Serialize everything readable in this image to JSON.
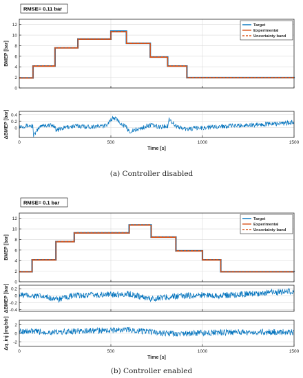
{
  "colors": {
    "target": "#0072BD",
    "experimental": "#D95319",
    "uncertainty": "#D95319",
    "grid": "#d9d9d9",
    "axis": "#262626"
  },
  "figure": {
    "caption_a": "(a) Controller disabled",
    "caption_b": "(b) Controller enabled"
  },
  "chart_data": [
    {
      "id": "a_top",
      "type": "line",
      "annotation": "RMSE= 0.11 bar",
      "ylabel": "BMEP [bar]",
      "xlabel": "",
      "xlim": [
        0,
        1500
      ],
      "ylim": [
        0,
        13
      ],
      "xticks": [
        0,
        500,
        1000,
        1500
      ],
      "yticks": [
        0,
        2,
        4,
        6,
        8,
        10,
        12
      ],
      "show_xticklabels": false,
      "grid": true,
      "legend": "top-right",
      "series": [
        {
          "name": "Target",
          "style": "solid",
          "color": "target",
          "steps": [
            [
              0,
              1.9
            ],
            [
              75,
              4.15
            ],
            [
              195,
              7.6
            ],
            [
              320,
              9.25
            ],
            [
              500,
              10.75
            ],
            [
              585,
              8.45
            ],
            [
              715,
              5.85
            ],
            [
              810,
              4.15
            ],
            [
              915,
              1.95
            ],
            [
              1500,
              1.85
            ]
          ]
        },
        {
          "name": "Experimental",
          "style": "solid",
          "color": "experimental",
          "steps": [
            [
              0,
              1.85
            ],
            [
              75,
              4.1
            ],
            [
              195,
              7.55
            ],
            [
              320,
              9.2
            ],
            [
              500,
              10.6
            ],
            [
              585,
              8.4
            ],
            [
              715,
              5.8
            ],
            [
              810,
              4.1
            ],
            [
              915,
              1.9
            ],
            [
              1500,
              1.8
            ]
          ]
        },
        {
          "name": "Uncertainty band",
          "style": "dashed",
          "color": "uncertainty",
          "steps": [
            [
              0,
              1.95
            ],
            [
              75,
              4.2
            ],
            [
              195,
              7.65
            ],
            [
              320,
              9.3
            ],
            [
              500,
              10.7
            ],
            [
              585,
              8.5
            ],
            [
              715,
              5.9
            ],
            [
              810,
              4.2
            ],
            [
              915,
              2.0
            ],
            [
              1500,
              1.9
            ]
          ]
        }
      ]
    },
    {
      "id": "a_err",
      "type": "line",
      "ylabel": "ΔBMEP [bar]",
      "xlabel": "Time [s]",
      "xlim": [
        0,
        1500
      ],
      "ylim": [
        -0.3,
        0.5
      ],
      "xticks": [
        0,
        500,
        1000,
        1500
      ],
      "yticks": [
        0,
        0.2,
        0.4
      ],
      "show_xticklabels": true,
      "grid": true,
      "series": [
        {
          "name": "",
          "color": "target",
          "x": [
            0,
            40,
            75,
            78,
            120,
            195,
            200,
            260,
            320,
            380,
            470,
            500,
            520,
            585,
            600,
            650,
            715,
            760,
            810,
            815,
            860,
            915,
            960,
            1100,
            1250,
            1400,
            1500
          ],
          "y": [
            0.04,
            0.06,
            0.05,
            -0.25,
            0.08,
            0.06,
            -0.08,
            0.02,
            0.05,
            0.03,
            0.05,
            0.25,
            0.3,
            0.0,
            -0.12,
            -0.05,
            0.08,
            0.02,
            0.05,
            0.28,
            0.03,
            -0.05,
            -0.02,
            0.04,
            0.08,
            0.12,
            0.16
          ],
          "noise": 0.07
        }
      ]
    },
    {
      "id": "b_top",
      "type": "line",
      "annotation": "RMSE= 0.1 bar",
      "ylabel": "BMEP [bar]",
      "xlabel": "",
      "xlim": [
        0,
        1500
      ],
      "ylim": [
        0,
        13
      ],
      "xticks": [
        0,
        500,
        1000,
        1500
      ],
      "yticks": [
        0,
        2,
        4,
        6,
        8,
        10,
        12
      ],
      "show_xticklabels": false,
      "grid": true,
      "legend": "top-right",
      "series": [
        {
          "name": "Target",
          "style": "solid",
          "color": "target",
          "steps": [
            [
              0,
              1.9
            ],
            [
              70,
              4.15
            ],
            [
              200,
              7.6
            ],
            [
              300,
              9.25
            ],
            [
              600,
              10.75
            ],
            [
              720,
              8.45
            ],
            [
              855,
              5.85
            ],
            [
              1000,
              4.15
            ],
            [
              1100,
              1.9
            ],
            [
              1500,
              1.85
            ]
          ]
        },
        {
          "name": "Experimental",
          "style": "solid",
          "color": "experimental",
          "steps": [
            [
              0,
              1.85
            ],
            [
              70,
              4.1
            ],
            [
              200,
              7.55
            ],
            [
              300,
              9.2
            ],
            [
              600,
              10.7
            ],
            [
              720,
              8.4
            ],
            [
              855,
              5.8
            ],
            [
              1000,
              4.1
            ],
            [
              1100,
              1.85
            ],
            [
              1500,
              1.8
            ]
          ]
        },
        {
          "name": "Uncertainty band",
          "style": "dashed",
          "color": "uncertainty",
          "steps": [
            [
              0,
              1.95
            ],
            [
              70,
              4.2
            ],
            [
              200,
              7.65
            ],
            [
              300,
              9.3
            ],
            [
              600,
              10.8
            ],
            [
              720,
              8.5
            ],
            [
              855,
              5.9
            ],
            [
              1000,
              4.2
            ],
            [
              1100,
              1.95
            ],
            [
              1500,
              1.9
            ]
          ]
        }
      ]
    },
    {
      "id": "b_err",
      "type": "line",
      "ylabel": "ΔBMEP [bar]",
      "xlabel": "",
      "xlim": [
        0,
        1500
      ],
      "ylim": [
        -0.45,
        0.3
      ],
      "xticks": [
        0,
        500,
        1000,
        1500
      ],
      "yticks": [
        -0.4,
        -0.2,
        0,
        0.2
      ],
      "show_xticklabels": false,
      "grid": true,
      "series": [
        {
          "name": "",
          "color": "target",
          "x": [
            0,
            70,
            200,
            205,
            300,
            600,
            720,
            725,
            855,
            1000,
            1100,
            1250,
            1400,
            1500
          ],
          "y": [
            0.02,
            0.0,
            -0.08,
            -0.12,
            0.0,
            0.05,
            -0.1,
            -0.08,
            -0.02,
            0.02,
            0.0,
            0.05,
            0.1,
            0.12
          ],
          "noise": 0.09
        }
      ]
    },
    {
      "id": "b_dq",
      "type": "line",
      "ylabel": "Δq_inj [mg/str]",
      "xlabel": "Time [s]",
      "xlim": [
        0,
        1500
      ],
      "ylim": [
        -3,
        3
      ],
      "xticks": [
        0,
        500,
        1000,
        1500
      ],
      "yticks": [
        -2,
        0,
        2
      ],
      "show_xticklabels": true,
      "grid": true,
      "series": [
        {
          "name": "",
          "color": "target",
          "x": [
            0,
            70,
            200,
            300,
            600,
            720,
            855,
            1000,
            1100,
            1250,
            1500
          ],
          "y": [
            0.5,
            0.4,
            0.2,
            0.5,
            0.8,
            0.3,
            -0.2,
            0.1,
            0.2,
            0.3,
            0.3
          ],
          "noise": 0.7
        }
      ]
    }
  ]
}
